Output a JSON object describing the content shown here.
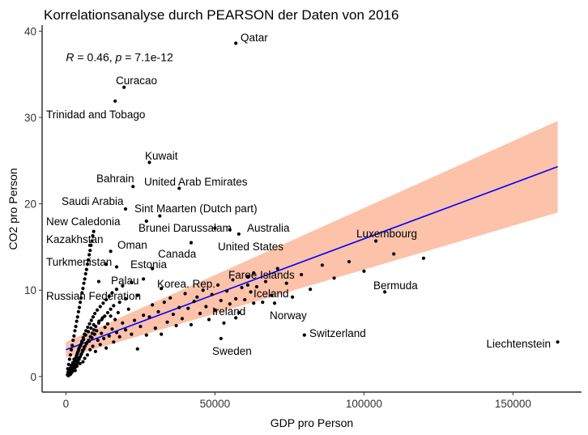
{
  "chart_data": {
    "type": "scatter",
    "title": "Korrelationsanalyse durch PEARSON der Daten von 2016",
    "xlabel": "GDP pro Person",
    "ylabel": "CO2 pro Person",
    "xlim": [
      -8000,
      173000
    ],
    "ylim": [
      -1.8,
      40.7
    ],
    "x_ticks": [
      0,
      50000,
      100000,
      150000
    ],
    "x_tick_labels": [
      "0",
      "50000",
      "100000",
      "150000"
    ],
    "y_ticks": [
      0,
      10,
      20,
      30,
      40
    ],
    "y_tick_labels": [
      "0",
      "10",
      "20",
      "30",
      "40"
    ],
    "annotation": {
      "parts": [
        "R",
        " = 0.46, ",
        "p",
        " = 7.1e-12"
      ],
      "x": 0,
      "y": 37
    },
    "regression": {
      "color": "#0000ff",
      "band_color": "#fcbba1",
      "x0": 0,
      "y0": 3.1,
      "x1": 165000,
      "y1": 24.3,
      "band_half_width_x0": 0.9,
      "band_half_width_x1": 5.3
    },
    "labeled_points": [
      {
        "name": "Qatar",
        "x": 57000,
        "y": 38.6
      },
      {
        "name": "Curacao",
        "x": 19500,
        "y": 33.5
      },
      {
        "name": "Trinidad and Tobago",
        "x": 16500,
        "y": 31.9
      },
      {
        "name": "Kuwait",
        "x": 28000,
        "y": 24.8
      },
      {
        "name": "Bahrain",
        "x": 22500,
        "y": 22.0
      },
      {
        "name": "United Arab Emirates",
        "x": 38000,
        "y": 21.8
      },
      {
        "name": "Saudi Arabia",
        "x": 20000,
        "y": 19.4
      },
      {
        "name": "Sint Maarten (Dutch part)",
        "x": 31500,
        "y": 18.6
      },
      {
        "name": "New Caledonia",
        "x": 27000,
        "y": 18.0
      },
      {
        "name": "Brunei Darussalam",
        "x": 50000,
        "y": 17.2
      },
      {
        "name": "Australia",
        "x": 55000,
        "y": 17.0
      },
      {
        "name": "Kazakhstan",
        "x": 8000,
        "y": 15.2
      },
      {
        "name": "Oman",
        "x": 15000,
        "y": 14.5
      },
      {
        "name": "United States",
        "x": 58000,
        "y": 16.5
      },
      {
        "name": "Luxembourg",
        "x": 104000,
        "y": 15.7
      },
      {
        "name": "Canada",
        "x": 42000,
        "y": 15.5
      },
      {
        "name": "Turkmenistan",
        "x": 13500,
        "y": 13.0
      },
      {
        "name": "Estonia",
        "x": 29000,
        "y": 12.5
      },
      {
        "name": "Palau",
        "x": 17000,
        "y": 12.7
      },
      {
        "name": "Korea. Rep.",
        "x": 32000,
        "y": 10.2
      },
      {
        "name": "Russian Federation",
        "x": 11000,
        "y": 11.0
      },
      {
        "name": "Faroe Islands",
        "x": 61000,
        "y": 10.6
      },
      {
        "name": "Bermuda",
        "x": 107000,
        "y": 9.8
      },
      {
        "name": "Iceland",
        "x": 63000,
        "y": 8.5
      },
      {
        "name": "Ireland",
        "x": 57000,
        "y": 6.8
      },
      {
        "name": "Norway",
        "x": 70000,
        "y": 8.5
      },
      {
        "name": "Switzerland",
        "x": 80000,
        "y": 4.8
      },
      {
        "name": "Sweden",
        "x": 52000,
        "y": 4.4
      },
      {
        "name": "Liechtenstein",
        "x": 165000,
        "y": 4.0
      }
    ],
    "other_points": [
      [
        500,
        0.2
      ],
      [
        700,
        0.5
      ],
      [
        900,
        0.3
      ],
      [
        1100,
        0.8
      ],
      [
        1300,
        0.4
      ],
      [
        1500,
        1.0
      ],
      [
        1700,
        0.6
      ],
      [
        1900,
        1.3
      ],
      [
        2100,
        0.9
      ],
      [
        2300,
        1.6
      ],
      [
        2500,
        1.1
      ],
      [
        2700,
        2.0
      ],
      [
        2900,
        1.4
      ],
      [
        3100,
        0.7
      ],
      [
        3300,
        1.8
      ],
      [
        3500,
        2.4
      ],
      [
        3700,
        1.2
      ],
      [
        3900,
        2.8
      ],
      [
        4100,
        1.9
      ],
      [
        4300,
        3.2
      ],
      [
        4500,
        2.2
      ],
      [
        4700,
        1.5
      ],
      [
        4900,
        3.6
      ],
      [
        5100,
        2.6
      ],
      [
        5300,
        4.0
      ],
      [
        5500,
        3.0
      ],
      [
        5700,
        1.7
      ],
      [
        5900,
        4.3
      ],
      [
        6100,
        3.4
      ],
      [
        6300,
        2.1
      ],
      [
        6600,
        4.8
      ],
      [
        6900,
        3.8
      ],
      [
        7200,
        2.5
      ],
      [
        7500,
        5.2
      ],
      [
        7800,
        4.1
      ],
      [
        8100,
        3.1
      ],
      [
        8400,
        5.6
      ],
      [
        8700,
        4.5
      ],
      [
        9000,
        3.5
      ],
      [
        9300,
        6.0
      ],
      [
        9600,
        4.9
      ],
      [
        9900,
        2.9
      ],
      [
        10300,
        5.3
      ],
      [
        10700,
        4.2
      ],
      [
        11100,
        6.4
      ],
      [
        11500,
        3.7
      ],
      [
        11900,
        5.0
      ],
      [
        12300,
        6.8
      ],
      [
        12700,
        4.4
      ],
      [
        13100,
        5.7
      ],
      [
        13500,
        3.3
      ],
      [
        14000,
        6.1
      ],
      [
        14500,
        4.7
      ],
      [
        15000,
        7.0
      ],
      [
        15500,
        5.5
      ],
      [
        16000,
        4.0
      ],
      [
        16500,
        6.6
      ],
      [
        17000,
        5.1
      ],
      [
        17500,
        7.4
      ],
      [
        18000,
        4.6
      ],
      [
        19000,
        6.2
      ],
      [
        20000,
        5.4
      ],
      [
        21000,
        7.8
      ],
      [
        22000,
        4.9
      ],
      [
        23000,
        6.5
      ],
      [
        24000,
        3.2
      ],
      [
        25000,
        5.8
      ],
      [
        26000,
        7.1
      ],
      [
        27000,
        4.8
      ],
      [
        28000,
        6.9
      ],
      [
        29000,
        8.3
      ],
      [
        30000,
        5.6
      ],
      [
        31000,
        7.5
      ],
      [
        32000,
        4.9
      ],
      [
        33000,
        8.6
      ],
      [
        34000,
        6.3
      ],
      [
        35000,
        9.1
      ],
      [
        36000,
        7.2
      ],
      [
        37000,
        5.9
      ],
      [
        38000,
        8.0
      ],
      [
        39000,
        6.7
      ],
      [
        40000,
        9.6
      ],
      [
        41000,
        7.9
      ],
      [
        42000,
        6.0
      ],
      [
        43000,
        8.7
      ],
      [
        44000,
        9.2
      ],
      [
        45000,
        7.3
      ],
      [
        46000,
        10.0
      ],
      [
        47000,
        8.1
      ],
      [
        48000,
        6.6
      ],
      [
        49000,
        9.5
      ],
      [
        50000,
        7.7
      ],
      [
        51000,
        10.6
      ],
      [
        52000,
        8.8
      ],
      [
        53000,
        6.2
      ],
      [
        54000,
        9.9
      ],
      [
        55000,
        8.4
      ],
      [
        56000,
        11.2
      ],
      [
        57000,
        9.0
      ],
      [
        58000,
        7.4
      ],
      [
        59000,
        10.3
      ],
      [
        60000,
        8.9
      ],
      [
        61000,
        11.6
      ],
      [
        62000,
        9.8
      ],
      [
        63000,
        12.0
      ],
      [
        64000,
        10.4
      ],
      [
        66000,
        8.6
      ],
      [
        67000,
        11.0
      ],
      [
        69000,
        9.4
      ],
      [
        71000,
        12.5
      ],
      [
        74000,
        10.8
      ],
      [
        76000,
        9.2
      ],
      [
        79000,
        11.8
      ],
      [
        82000,
        10.1
      ],
      [
        86000,
        12.9
      ],
      [
        90000,
        11.4
      ],
      [
        95000,
        13.3
      ],
      [
        100000,
        12.2
      ],
      [
        110000,
        14.2
      ],
      [
        120000,
        13.7
      ],
      [
        800,
        0.1
      ],
      [
        1000,
        0.4
      ],
      [
        1200,
        0.2
      ],
      [
        1400,
        0.6
      ],
      [
        1600,
        0.3
      ],
      [
        1800,
        0.9
      ],
      [
        2000,
        0.5
      ],
      [
        2200,
        1.2
      ],
      [
        2400,
        0.7
      ],
      [
        2600,
        1.5
      ],
      [
        2800,
        0.9
      ],
      [
        3000,
        1.8
      ],
      [
        3200,
        1.1
      ],
      [
        3400,
        2.2
      ],
      [
        3600,
        1.4
      ],
      [
        3800,
        2.6
      ],
      [
        4000,
        1.7
      ],
      [
        4200,
        3.0
      ],
      [
        4400,
        2.0
      ],
      [
        4600,
        3.4
      ],
      [
        4800,
        2.3
      ],
      [
        5000,
        3.7
      ],
      [
        5200,
        2.6
      ],
      [
        5400,
        4.1
      ],
      [
        5600,
        2.9
      ],
      [
        5800,
        4.5
      ],
      [
        6000,
        3.2
      ],
      [
        6200,
        4.9
      ],
      [
        6400,
        3.5
      ],
      [
        6700,
        5.3
      ],
      [
        7000,
        3.9
      ],
      [
        7300,
        5.7
      ],
      [
        7600,
        4.2
      ],
      [
        7900,
        6.1
      ],
      [
        8200,
        4.6
      ],
      [
        8500,
        6.5
      ],
      [
        8800,
        5.0
      ],
      [
        9100,
        6.9
      ],
      [
        9400,
        5.4
      ],
      [
        9700,
        7.3
      ],
      [
        10000,
        5.8
      ],
      [
        10500,
        7.7
      ],
      [
        11000,
        6.2
      ],
      [
        11500,
        8.1
      ],
      [
        12000,
        6.6
      ],
      [
        12500,
        8.5
      ],
      [
        13000,
        7.0
      ],
      [
        13500,
        8.9
      ],
      [
        14000,
        7.4
      ],
      [
        14500,
        9.3
      ],
      [
        15000,
        7.8
      ],
      [
        15500,
        9.7
      ],
      [
        16000,
        8.2
      ],
      [
        17000,
        10.1
      ],
      [
        18000,
        8.6
      ],
      [
        19000,
        10.5
      ],
      [
        20000,
        9.0
      ],
      [
        22000,
        10.9
      ],
      [
        24000,
        9.4
      ],
      [
        26000,
        11.3
      ],
      [
        600,
        0.9
      ],
      [
        900,
        1.4
      ],
      [
        1200,
        2.0
      ],
      [
        1500,
        2.5
      ],
      [
        1800,
        3.1
      ],
      [
        2100,
        3.6
      ],
      [
        2400,
        4.2
      ],
      [
        2700,
        4.7
      ],
      [
        3000,
        5.3
      ],
      [
        3300,
        5.8
      ],
      [
        3600,
        6.4
      ],
      [
        3900,
        6.9
      ],
      [
        4200,
        7.5
      ],
      [
        4500,
        8.0
      ],
      [
        4800,
        8.6
      ],
      [
        5100,
        9.1
      ],
      [
        5400,
        9.7
      ],
      [
        5700,
        10.2
      ],
      [
        6000,
        10.8
      ],
      [
        6300,
        11.3
      ],
      [
        6600,
        11.9
      ],
      [
        6900,
        12.4
      ],
      [
        7200,
        13.0
      ],
      [
        7500,
        13.5
      ],
      [
        7800,
        14.1
      ],
      [
        8100,
        14.6
      ],
      [
        8400,
        15.2
      ],
      [
        8700,
        15.7
      ],
      [
        9000,
        16.3
      ],
      [
        9300,
        16.8
      ]
    ]
  }
}
